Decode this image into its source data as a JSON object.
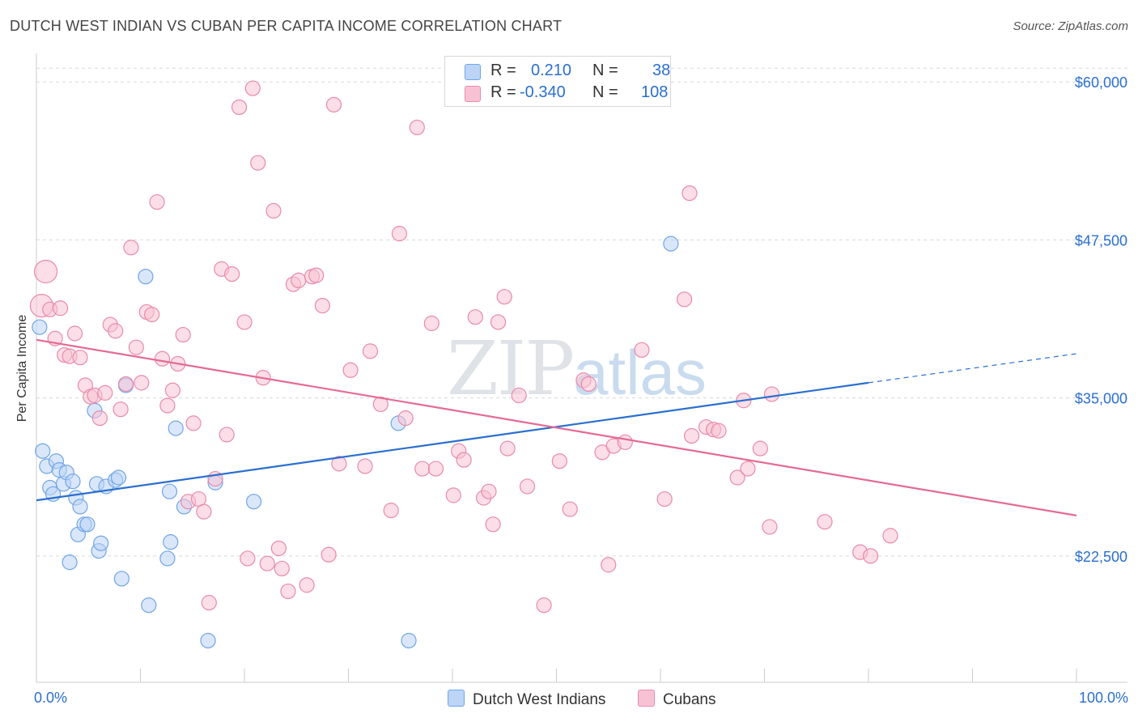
{
  "chart_data": {
    "type": "scatter",
    "title": "DUTCH WEST INDIAN VS CUBAN PER CAPITA INCOME CORRELATION CHART",
    "source": "Source: ZipAtlas.com",
    "xlabel": "",
    "ylabel": "Per Capita Income",
    "xlim": [
      0,
      100
    ],
    "ylim": [
      12500,
      62000
    ],
    "x_tick_labels": {
      "min": "0.0%",
      "max": "100.0%"
    },
    "y_ticks": [
      {
        "value": 22500,
        "label": "$22,500"
      },
      {
        "value": 35000,
        "label": "$35,000"
      },
      {
        "value": 47500,
        "label": "$47,500"
      },
      {
        "value": 60000,
        "label": "$60,000"
      }
    ],
    "watermark": {
      "zip": "ZIP",
      "atlas": "atlas"
    },
    "legend": {
      "r_label": "R =",
      "n_label": "N =",
      "entries": [
        {
          "name": "Dutch West Indians",
          "r": "0.210",
          "n": "38",
          "color": "#6fa5e8",
          "fill": "#bcd4f5"
        },
        {
          "name": "Cubans",
          "r": "-0.340",
          "n": "108",
          "color": "#e98aaa",
          "fill": "#f7c3d4"
        }
      ]
    },
    "series": [
      {
        "name": "Dutch West Indians",
        "color": "#6fa5e8",
        "trend": {
          "x0": 0,
          "y0": 26900,
          "x1": 80,
          "y1": 36200,
          "dash_to": 100,
          "dash_y": 38500,
          "color": "#2a6fd0"
        },
        "points": [
          [
            0.3,
            40600
          ],
          [
            0.6,
            30800
          ],
          [
            1.0,
            29600
          ],
          [
            1.3,
            27900
          ],
          [
            1.6,
            27400
          ],
          [
            1.9,
            30000
          ],
          [
            2.2,
            29300
          ],
          [
            2.6,
            28200
          ],
          [
            2.9,
            29100
          ],
          [
            3.2,
            22000
          ],
          [
            3.5,
            28400
          ],
          [
            3.8,
            27100
          ],
          [
            4.0,
            24200
          ],
          [
            4.2,
            26400
          ],
          [
            4.6,
            25000
          ],
          [
            4.9,
            25000
          ],
          [
            5.6,
            34000
          ],
          [
            5.8,
            28200
          ],
          [
            6.0,
            22900
          ],
          [
            6.2,
            23500
          ],
          [
            6.7,
            28000
          ],
          [
            7.6,
            28500
          ],
          [
            7.9,
            28700
          ],
          [
            8.2,
            20700
          ],
          [
            8.6,
            36000
          ],
          [
            10.5,
            44600
          ],
          [
            10.8,
            18600
          ],
          [
            12.6,
            22300
          ],
          [
            12.8,
            27600
          ],
          [
            12.9,
            23600
          ],
          [
            13.4,
            32600
          ],
          [
            14.2,
            26400
          ],
          [
            16.5,
            15800
          ],
          [
            17.2,
            28300
          ],
          [
            20.9,
            26800
          ],
          [
            34.8,
            33000
          ],
          [
            35.8,
            15800
          ],
          [
            61.0,
            47200
          ]
        ]
      },
      {
        "name": "Cubans",
        "color": "#e98aaa",
        "trend": {
          "x0": 0,
          "y0": 39600,
          "x1": 100,
          "y1": 25700,
          "color": "#e46a95"
        },
        "points": [
          [
            0.5,
            42300
          ],
          [
            0.9,
            45000
          ],
          [
            1.3,
            42000
          ],
          [
            1.8,
            39700
          ],
          [
            2.3,
            42100
          ],
          [
            2.7,
            38400
          ],
          [
            3.2,
            38300
          ],
          [
            3.7,
            40100
          ],
          [
            4.2,
            38200
          ],
          [
            4.7,
            36000
          ],
          [
            5.2,
            35100
          ],
          [
            5.6,
            35200
          ],
          [
            6.1,
            33400
          ],
          [
            6.6,
            35400
          ],
          [
            7.1,
            40800
          ],
          [
            7.6,
            40300
          ],
          [
            8.1,
            34100
          ],
          [
            8.6,
            36100
          ],
          [
            9.1,
            46900
          ],
          [
            9.6,
            39000
          ],
          [
            10.1,
            36200
          ],
          [
            10.6,
            41800
          ],
          [
            11.1,
            41600
          ],
          [
            11.6,
            50500
          ],
          [
            12.1,
            38100
          ],
          [
            12.6,
            34400
          ],
          [
            13.1,
            35600
          ],
          [
            13.6,
            37700
          ],
          [
            14.1,
            40000
          ],
          [
            14.6,
            26800
          ],
          [
            15.1,
            33000
          ],
          [
            15.6,
            27000
          ],
          [
            16.1,
            26000
          ],
          [
            16.6,
            18800
          ],
          [
            17.2,
            28600
          ],
          [
            17.8,
            45200
          ],
          [
            18.3,
            32100
          ],
          [
            18.8,
            44800
          ],
          [
            19.5,
            58000
          ],
          [
            20.0,
            41000
          ],
          [
            20.3,
            22300
          ],
          [
            20.8,
            59500
          ],
          [
            21.3,
            53600
          ],
          [
            21.8,
            36600
          ],
          [
            22.2,
            21900
          ],
          [
            22.8,
            49800
          ],
          [
            23.3,
            23100
          ],
          [
            23.6,
            21500
          ],
          [
            24.2,
            19700
          ],
          [
            24.7,
            44000
          ],
          [
            25.2,
            44300
          ],
          [
            26.0,
            20200
          ],
          [
            26.5,
            44600
          ],
          [
            26.9,
            44700
          ],
          [
            27.5,
            42300
          ],
          [
            28.1,
            22600
          ],
          [
            28.6,
            58200
          ],
          [
            29.1,
            29800
          ],
          [
            30.2,
            37200
          ],
          [
            31.6,
            29600
          ],
          [
            32.1,
            38700
          ],
          [
            33.1,
            34500
          ],
          [
            34.1,
            26100
          ],
          [
            34.9,
            48000
          ],
          [
            35.5,
            33400
          ],
          [
            36.6,
            56400
          ],
          [
            37.1,
            29400
          ],
          [
            38.0,
            40900
          ],
          [
            38.4,
            29400
          ],
          [
            40.1,
            27300
          ],
          [
            40.6,
            30800
          ],
          [
            41.1,
            30100
          ],
          [
            42.2,
            41400
          ],
          [
            43.0,
            27100
          ],
          [
            43.5,
            27600
          ],
          [
            43.9,
            25000
          ],
          [
            44.4,
            41000
          ],
          [
            45.0,
            43000
          ],
          [
            45.3,
            31000
          ],
          [
            47.2,
            28000
          ],
          [
            48.8,
            18600
          ],
          [
            50.3,
            30000
          ],
          [
            51.3,
            26200
          ],
          [
            52.6,
            36400
          ],
          [
            53.1,
            36100
          ],
          [
            54.4,
            30700
          ],
          [
            55.0,
            21800
          ],
          [
            55.5,
            31200
          ],
          [
            56.6,
            31500
          ],
          [
            58.2,
            38800
          ],
          [
            60.4,
            27000
          ],
          [
            62.3,
            42800
          ],
          [
            62.8,
            51200
          ],
          [
            63.0,
            32000
          ],
          [
            64.4,
            32700
          ],
          [
            65.1,
            32500
          ],
          [
            65.6,
            32400
          ],
          [
            67.4,
            28700
          ],
          [
            68.0,
            34800
          ],
          [
            68.4,
            29400
          ],
          [
            69.6,
            31000
          ],
          [
            70.5,
            24800
          ],
          [
            70.7,
            35300
          ],
          [
            75.8,
            25200
          ],
          [
            79.2,
            22800
          ],
          [
            80.2,
            22500
          ],
          [
            82.1,
            24100
          ],
          [
            46.4,
            35200
          ]
        ]
      }
    ]
  }
}
